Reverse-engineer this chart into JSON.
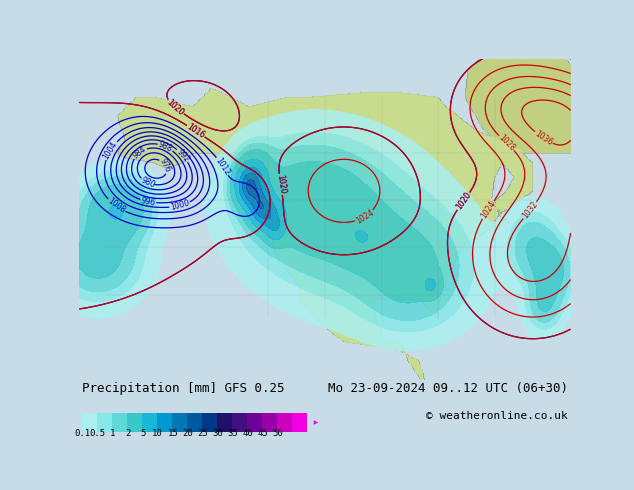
{
  "title_left": "Precipitation [mm] GFS 0.25",
  "title_right": "Mo 23-09-2024 09..12 UTC (06+30)",
  "copyright": "© weatheronline.co.uk",
  "colorbar_labels": [
    "0.1",
    "0.5",
    "1",
    "2",
    "5",
    "10",
    "15",
    "20",
    "25",
    "30",
    "35",
    "40",
    "45",
    "50"
  ],
  "colorbar_colors": [
    "#aaf0f0",
    "#88e8e8",
    "#60d8d8",
    "#38c8c8",
    "#18b8d8",
    "#0098d0",
    "#0078b8",
    "#0058a0",
    "#003888",
    "#201068",
    "#401080",
    "#6c0098",
    "#9800a8",
    "#cc00c0",
    "#f000e0"
  ],
  "arrow_color": "#f000e0",
  "ocean_color": "#c8dce8",
  "land_color": "#c8dc90",
  "precip_light_color": "#88e8e8",
  "precip_med_color": "#38c8c8",
  "bottom_bg": "#ffffff",
  "text_color": "#000000",
  "blue_isobar_color": "#0000cc",
  "red_isobar_color": "#cc0000",
  "border_color": "#808080",
  "fig_width": 6.34,
  "fig_height": 4.9,
  "dpi": 100
}
